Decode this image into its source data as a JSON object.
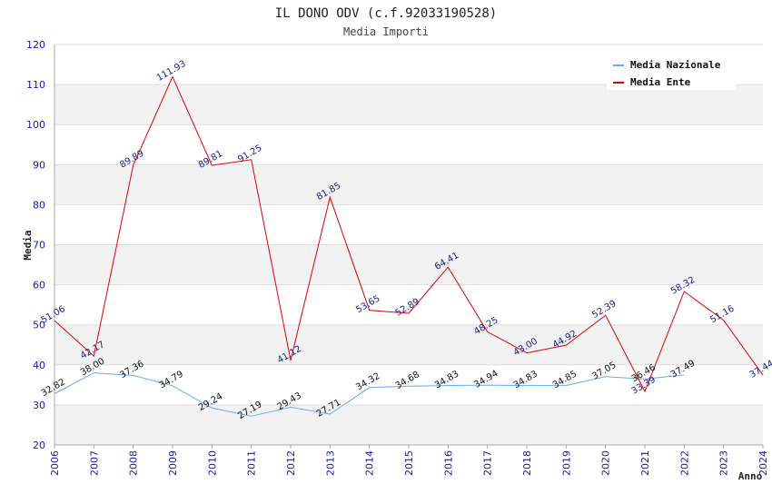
{
  "chart_data": {
    "type": "line",
    "title": "IL DONO ODV (c.f.92033190528)",
    "subtitle": "Media Importi",
    "xlabel": "Anno",
    "ylabel": "Media",
    "categories": [
      "2006",
      "2007",
      "2008",
      "2009",
      "2010",
      "2011",
      "2012",
      "2013",
      "2014",
      "2015",
      "2016",
      "2017",
      "2018",
      "2019",
      "2020",
      "2021",
      "2022",
      "2023",
      "2024"
    ],
    "yticks": [
      "20",
      "30",
      "40",
      "50",
      "60",
      "70",
      "80",
      "90",
      "100",
      "110",
      "120"
    ],
    "ylim": [
      20,
      120
    ],
    "grid": true,
    "legend_position": "top-right",
    "series": [
      {
        "name": "Media Nazionale",
        "color": "#66aaee",
        "values": [
          32.82,
          38.0,
          37.36,
          34.79,
          29.24,
          27.19,
          29.43,
          27.71,
          34.32,
          34.68,
          34.83,
          34.94,
          34.83,
          34.85,
          37.05,
          36.46,
          37.49,
          null,
          null
        ],
        "labels": [
          "32.82",
          "38.00",
          "37.36",
          "34.79",
          "29.24",
          "27.19",
          "29.43",
          "27.71",
          "34.32",
          "34.68",
          "34.83",
          "34.94",
          "34.83",
          "34.85",
          "37.05",
          "36.46",
          "37.49",
          null,
          null
        ]
      },
      {
        "name": "Media Ente",
        "color": "#dd0000",
        "values": [
          51.06,
          42.17,
          89.89,
          111.93,
          89.81,
          91.25,
          41.12,
          81.85,
          53.65,
          52.89,
          64.41,
          48.25,
          43.0,
          44.92,
          52.39,
          33.39,
          58.32,
          51.16,
          37.44
        ],
        "labels": [
          "51.06",
          "42.17",
          "89.89",
          "111.93",
          "89.81",
          "91.25",
          "41.12",
          "81.85",
          "53.65",
          "52.89",
          "64.41",
          "48.25",
          "43.00",
          "44.92",
          "52.39",
          "33.39",
          "58.32",
          "51.16",
          "37.44"
        ]
      }
    ]
  }
}
